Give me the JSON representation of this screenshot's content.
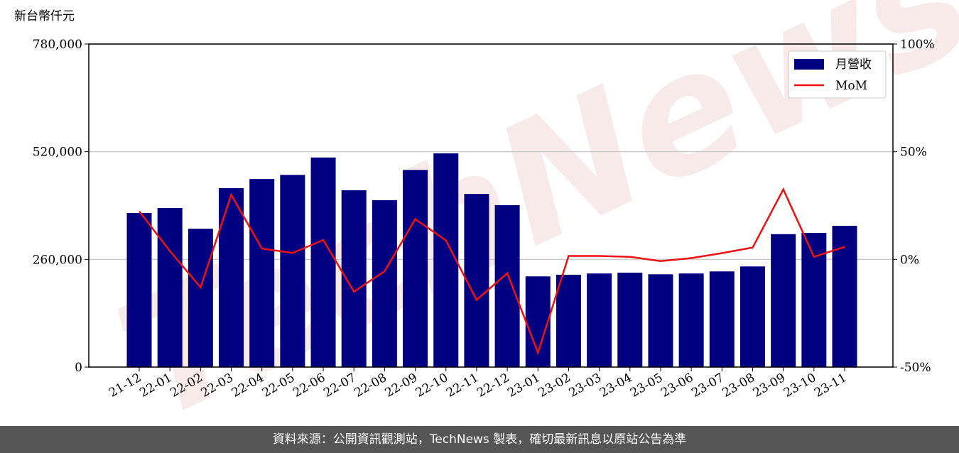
{
  "chart_data": {
    "type": "bar",
    "y_label": "新台幣仟元",
    "watermark": "TechNews",
    "categories": [
      "21-12",
      "22-01",
      "22-02",
      "22-03",
      "22-04",
      "22-05",
      "22-06",
      "22-07",
      "22-08",
      "22-09",
      "22-10",
      "22-11",
      "22-12",
      "23-01",
      "23-02",
      "23-03",
      "23-04",
      "23-05",
      "23-06",
      "23-07",
      "23-08",
      "23-09",
      "23-10",
      "23-11"
    ],
    "series": [
      {
        "name": "月營收",
        "type": "bar",
        "color": "#000080",
        "values": [
          372000,
          384000,
          334000,
          432000,
          454000,
          464000,
          506000,
          427000,
          403000,
          476000,
          516000,
          418000,
          391000,
          219000,
          223000,
          226000,
          228000,
          224000,
          226000,
          231000,
          243000,
          321000,
          324000,
          341000
        ]
      },
      {
        "name": "MoM",
        "type": "line",
        "axis": "y2",
        "color": "#ee1111",
        "values": [
          22.3,
          3.9,
          -13,
          30,
          5,
          3,
          9,
          -15,
          -5.5,
          18.7,
          8.8,
          -18.8,
          -6.4,
          -43.3,
          1.6,
          1.6,
          1.2,
          -0.8,
          0.6,
          2.9,
          5.5,
          32.5,
          1.2,
          5.8
        ]
      }
    ],
    "ylim": [
      0,
      780000
    ],
    "yticks": [
      0,
      {
        "value": 260000,
        "label": "260,000"
      },
      {
        "value": 520000,
        "label": "520,000"
      },
      {
        "value": 780000,
        "label": "780,000"
      }
    ],
    "y2lim": [
      -50,
      100
    ],
    "y2ticks": [
      {
        "value": -50,
        "label": "-50%"
      },
      {
        "value": 0,
        "label": "0%"
      },
      {
        "value": 50,
        "label": "50%"
      },
      {
        "value": 100,
        "label": "100%"
      }
    ],
    "grid": true,
    "legend": "upper right"
  },
  "footer": "資料來源：公開資訊觀測站，TechNews 製表，確切最新訊息以原站公告為準"
}
